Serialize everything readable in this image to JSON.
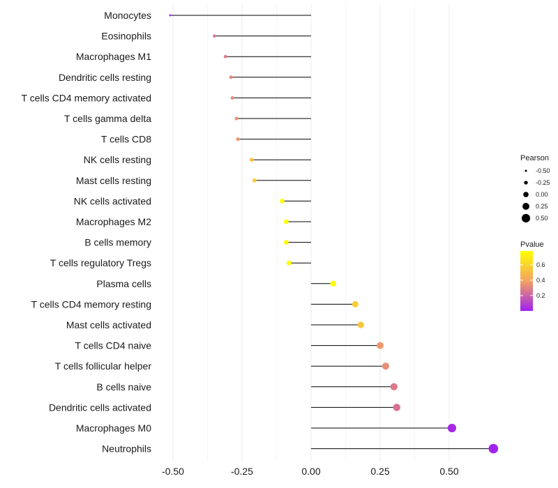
{
  "chart_data": {
    "type": "lollipop",
    "title": "",
    "xlabel": "",
    "ylabel": "",
    "xlim": [
      -0.55,
      0.67
    ],
    "x_ticks": [
      -0.5,
      -0.25,
      0.0,
      0.25,
      0.5
    ],
    "x_tick_labels": [
      "-0.50",
      "-0.25",
      "0.00",
      "0.25",
      "0.50"
    ],
    "baseline": 0,
    "grid": "vertical",
    "categories": [
      "Monocytes",
      "Eosinophils",
      "Macrophages M1",
      "Dendritic cells resting",
      "T cells CD4 memory activated",
      "T cells gamma delta",
      "T cells CD8",
      "NK cells resting",
      "Mast cells resting",
      "NK cells activated",
      "Macrophages M2",
      "B cells memory",
      "T cells regulatory  Tregs",
      "Plasma cells",
      "T cells CD4 memory resting",
      "Mast cells activated",
      "T cells CD4 naive",
      "T cells follicular helper",
      "B cells naive",
      "Dendritic cells activated",
      "Macrophages M0",
      "Neutrophils"
    ],
    "pearson": [
      -0.51,
      -0.35,
      -0.31,
      -0.29,
      -0.285,
      -0.27,
      -0.265,
      -0.215,
      -0.205,
      -0.105,
      -0.09,
      -0.09,
      -0.08,
      0.08,
      0.16,
      0.18,
      0.25,
      0.27,
      0.3,
      0.31,
      0.51,
      0.66
    ],
    "pvalue": [
      0.02,
      0.25,
      0.28,
      0.32,
      0.33,
      0.35,
      0.36,
      0.52,
      0.55,
      0.78,
      0.78,
      0.76,
      0.78,
      0.78,
      0.58,
      0.54,
      0.36,
      0.33,
      0.27,
      0.25,
      0.03,
      0.01
    ],
    "size_legend": {
      "title": "Pearson",
      "values": [
        -0.5,
        -0.25,
        0.0,
        0.25,
        0.5
      ],
      "labels": [
        "-0.50",
        "-0.25",
        "0.00",
        "0.25",
        "0.50"
      ]
    },
    "color_legend": {
      "title": "Pvalue",
      "range": [
        0.0,
        0.78
      ],
      "ticks": [
        0.2,
        0.4,
        0.6
      ],
      "tick_labels": [
        "0.2",
        "0.4",
        "0.6"
      ],
      "colors": [
        "#a020f0",
        "#f4a261",
        "#ffff00"
      ]
    },
    "legend_position": "right"
  }
}
